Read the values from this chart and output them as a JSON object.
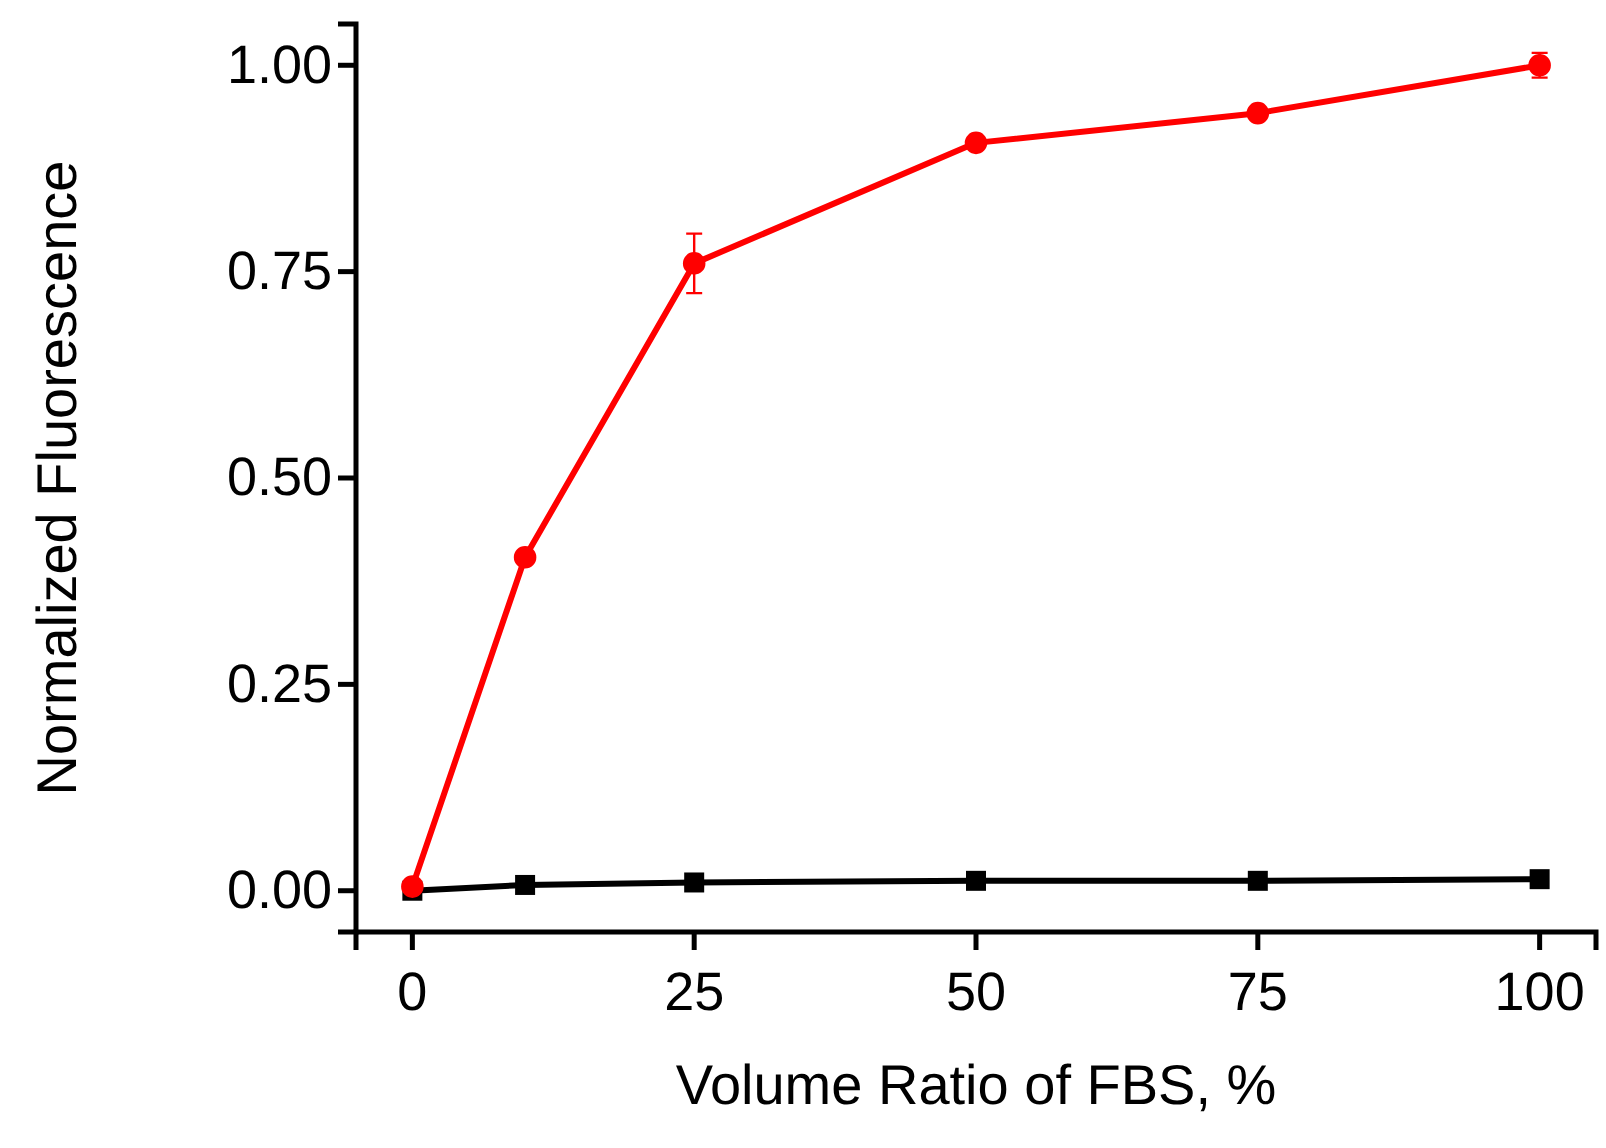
{
  "chart_data": {
    "type": "line",
    "xlabel": "Volume Ratio of FBS, %",
    "ylabel": "Normalized Fluorescence",
    "x": [
      0,
      10,
      25,
      50,
      75,
      100
    ],
    "series": [
      {
        "color": "#ff0000",
        "marker": "circle",
        "values": [
          0.005,
          0.404,
          0.76,
          0.906,
          0.942,
          1.0
        ],
        "errors": [
          null,
          null,
          0.036,
          null,
          null,
          0.015
        ]
      },
      {
        "color": "#000000",
        "marker": "square",
        "values": [
          0.0,
          0.007,
          0.01,
          0.012,
          0.012,
          0.014
        ]
      }
    ],
    "xlim": [
      -5,
      105
    ],
    "xticks": [
      0,
      25,
      50,
      75,
      100
    ],
    "ylim": [
      -0.05,
      1.05
    ],
    "yticks": [
      {
        "value": 0,
        "label": "0.00"
      },
      {
        "value": 0.25,
        "label": "0.25"
      },
      {
        "value": 0.5,
        "label": "0.50"
      },
      {
        "value": 0.75,
        "label": "0.75"
      },
      {
        "value": 1,
        "label": "1.00"
      }
    ],
    "grid": false
  }
}
